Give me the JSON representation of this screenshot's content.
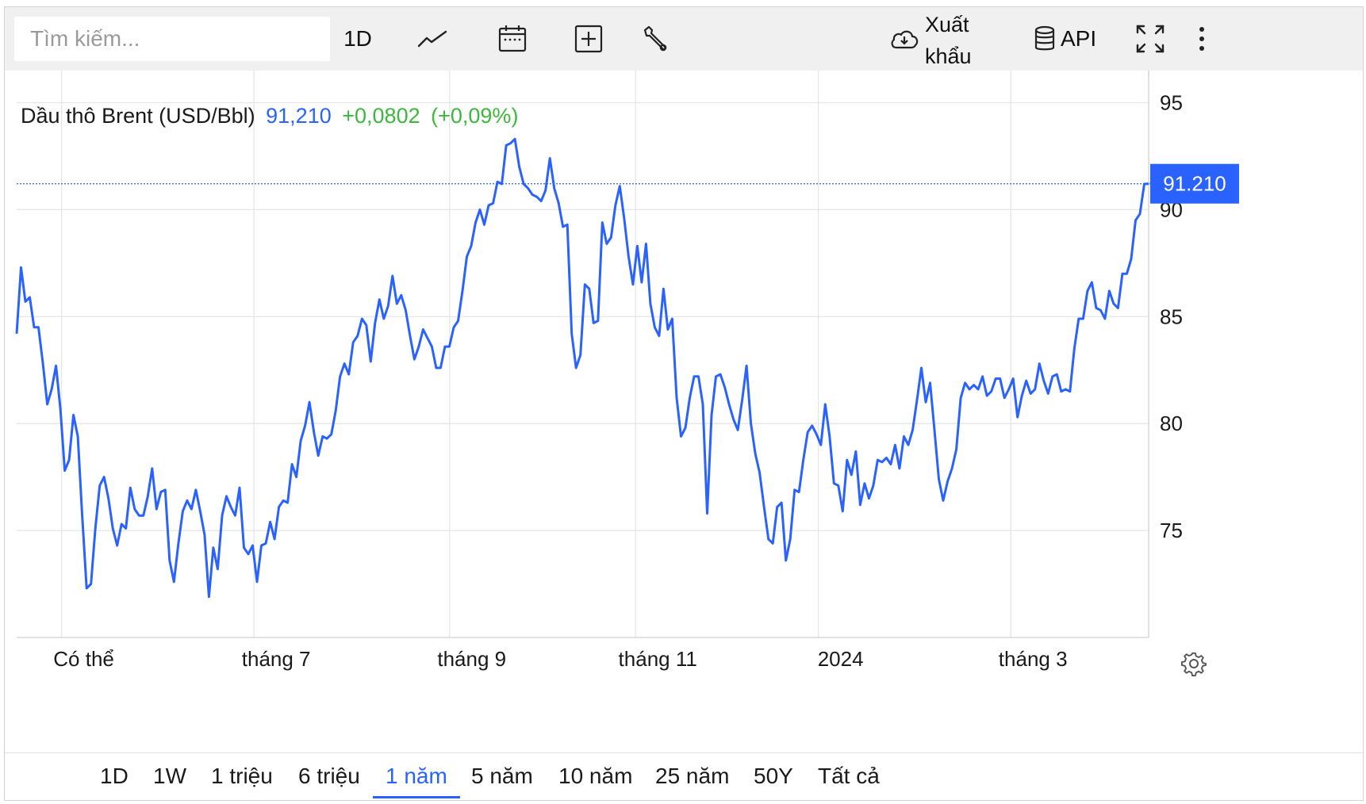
{
  "toolbar": {
    "search_placeholder": "Tìm kiếm...",
    "interval": "1D",
    "export_line1": "Xuất",
    "export_line2": "khẩu",
    "api": "API"
  },
  "legend": {
    "name": "Dầu thô Brent (USD/Bbl)",
    "value": "91,210",
    "change": "+0,0802",
    "change_pct": "(+0,09%)"
  },
  "colors": {
    "line": "#2962ff",
    "up": "#3cb83c",
    "grid": "#e6e6e6",
    "toolbar_bg": "#f0f0f0"
  },
  "ranges": [
    "1D",
    "1W",
    "1 triệu",
    "6 triệu",
    "1 năm",
    "5 năm",
    "10 năm",
    "25 năm",
    "50Y",
    "Tất cả"
  ],
  "active_range": "1 năm",
  "chart_data": {
    "type": "line",
    "title": "Dầu thô Brent (USD/Bbl)",
    "x_tick_labels": [
      "Có thể",
      "tháng 7",
      "tháng 9",
      "tháng 11",
      "2024",
      "tháng 3"
    ],
    "x_ticks": [
      14,
      74,
      135,
      193,
      250,
      310
    ],
    "y_ticks": [
      75,
      80,
      85,
      90,
      95
    ],
    "ylim": [
      70,
      96.5
    ],
    "xlim": [
      0,
      353
    ],
    "last_value_label": "91.210",
    "last_value": 91.21,
    "grid": true,
    "y_axis_position": "right",
    "series": [
      {
        "values": [
          84.2,
          87.3,
          85.7,
          85.9,
          84.5,
          84.5,
          82.8,
          80.9,
          81.6,
          82.7,
          80.7,
          77.8,
          78.3,
          80.4,
          79.4,
          75.7,
          72.3,
          72.5,
          75.1,
          77.1,
          77.5,
          76.5,
          75.1,
          74.3,
          75.3,
          75.1,
          77.0,
          76.0,
          75.7,
          75.7,
          76.6,
          77.9,
          76.0,
          76.8,
          76.9,
          73.6,
          72.6,
          74.4,
          75.9,
          76.4,
          76.0,
          76.9,
          75.9,
          74.8,
          71.9,
          74.2,
          73.2,
          75.7,
          76.6,
          76.1,
          75.7,
          77.0,
          74.2,
          73.9,
          74.3,
          72.6,
          74.3,
          74.4,
          75.4,
          74.6,
          76.1,
          76.4,
          76.3,
          78.1,
          77.5,
          79.2,
          79.9,
          81.0,
          79.6,
          78.5,
          79.4,
          79.3,
          79.5,
          80.6,
          82.2,
          82.8,
          82.3,
          83.8,
          84.1,
          84.9,
          84.6,
          82.9,
          84.7,
          85.8,
          84.9,
          85.5,
          86.9,
          85.6,
          86.0,
          85.3,
          84.1,
          83.0,
          83.6,
          84.4,
          84.0,
          83.6,
          82.6,
          82.6,
          83.6,
          83.6,
          84.5,
          84.8,
          86.2,
          87.8,
          88.3,
          89.4,
          90.0,
          89.3,
          90.2,
          90.3,
          91.3,
          91.2,
          93.0,
          93.1,
          93.3,
          92.0,
          91.2,
          91.0,
          90.7,
          90.6,
          90.4,
          90.9,
          92.4,
          91.0,
          90.3,
          89.2,
          89.3,
          84.2,
          82.6,
          83.2,
          86.5,
          86.3,
          84.7,
          84.8,
          89.4,
          88.4,
          88.7,
          90.2,
          91.1,
          89.6,
          87.8,
          86.5,
          88.3,
          86.6,
          88.4,
          85.6,
          84.5,
          84.1,
          86.3,
          84.4,
          84.9,
          81.2,
          79.4,
          79.8,
          81.2,
          82.2,
          82.2,
          80.9,
          75.8,
          80.4,
          82.2,
          82.3,
          81.7,
          80.9,
          80.2,
          79.7,
          81.1,
          82.7,
          80.0,
          78.6,
          77.7,
          76.1,
          74.6,
          74.4,
          76.1,
          76.3,
          73.6,
          74.6,
          76.9,
          76.8,
          78.3,
          79.6,
          79.9,
          79.5,
          79.0,
          80.9,
          79.4,
          77.2,
          77.1,
          75.9,
          78.3,
          77.6,
          78.7,
          76.2,
          77.2,
          76.5,
          77.1,
          78.3,
          78.2,
          78.4,
          78.1,
          79.0,
          77.9,
          79.4,
          79.0,
          79.7,
          81.1,
          82.6,
          81.0,
          81.9,
          79.7,
          77.4,
          76.4,
          77.3,
          77.9,
          78.8,
          81.2,
          81.9,
          81.6,
          81.8,
          81.6,
          82.2,
          81.3,
          81.5,
          82.1,
          82.1,
          81.2,
          81.6,
          82.1,
          80.3,
          81.3,
          82.0,
          81.4,
          81.6,
          82.8,
          82.0,
          81.4,
          82.2,
          82.3,
          81.5,
          81.6,
          81.5,
          83.5,
          84.9,
          84.9,
          86.2,
          86.6,
          85.4,
          85.3,
          84.9,
          86.2,
          85.6,
          85.4,
          87.0,
          87.0,
          87.7,
          89.5,
          89.8,
          91.2,
          91.21
        ]
      }
    ]
  }
}
